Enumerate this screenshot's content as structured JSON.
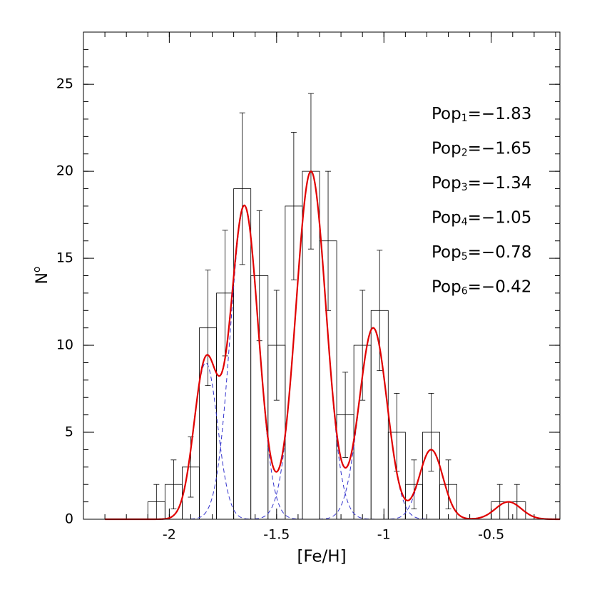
{
  "chart_data": {
    "type": "histogram",
    "xlabel": "[Fe/H]",
    "ylabel": "N",
    "ylabel_sup": "o",
    "bins": [
      -2.1,
      -2.02,
      -1.94,
      -1.86,
      -1.78,
      -1.7,
      -1.62,
      -1.54,
      -1.46,
      -1.38,
      -1.3,
      -1.22,
      -1.14,
      -1.06,
      -0.98,
      -0.9,
      -0.82,
      -0.74,
      -0.66,
      -0.58,
      -0.5,
      -0.42,
      -0.34
    ],
    "values": [
      1,
      2,
      3,
      11,
      13,
      19,
      14,
      10,
      18,
      20,
      16,
      6,
      10,
      12,
      5,
      2,
      5,
      2,
      0,
      0,
      1,
      1
    ],
    "errors": [
      1,
      1.41,
      1.73,
      3.32,
      3.61,
      4.36,
      3.74,
      3.16,
      4.24,
      4.47,
      4,
      2.45,
      3.16,
      3.46,
      2.24,
      1.41,
      2.24,
      1.41,
      0,
      0,
      1,
      1
    ],
    "color": "#000000",
    "components": [
      {
        "label_base": "Pop",
        "label_sub": "1",
        "label_value": "=−1.83",
        "mean": -1.83,
        "amplitude": 9,
        "sigma": 0.055
      },
      {
        "label_base": "Pop",
        "label_sub": "2",
        "label_value": "=−1.65",
        "mean": -1.65,
        "amplitude": 18,
        "sigma": 0.065
      },
      {
        "label_base": "Pop",
        "label_sub": "3",
        "label_value": "=−1.34",
        "mean": -1.34,
        "amplitude": 20,
        "sigma": 0.07
      },
      {
        "label_base": "Pop",
        "label_sub": "4",
        "label_value": "=−1.05",
        "mean": -1.05,
        "amplitude": 11,
        "sigma": 0.065
      },
      {
        "label_base": "Pop",
        "label_sub": "5",
        "label_value": "=−0.78",
        "mean": -0.78,
        "amplitude": 4,
        "sigma": 0.055
      },
      {
        "label_base": "Pop",
        "label_sub": "6",
        "label_value": "=−0.42",
        "mean": -0.42,
        "amplitude": 1,
        "sigma": 0.06
      }
    ],
    "component_color": "#3333cc",
    "fit_color": "#e00000",
    "xlim": [
      -2.4,
      -0.18
    ],
    "ylim": [
      0,
      28
    ],
    "xticks": [
      -2,
      -1.5,
      -1,
      -0.5
    ],
    "yticks": [
      0,
      5,
      10,
      15,
      20,
      25
    ],
    "xminor": 0.1,
    "yminor": 1
  }
}
